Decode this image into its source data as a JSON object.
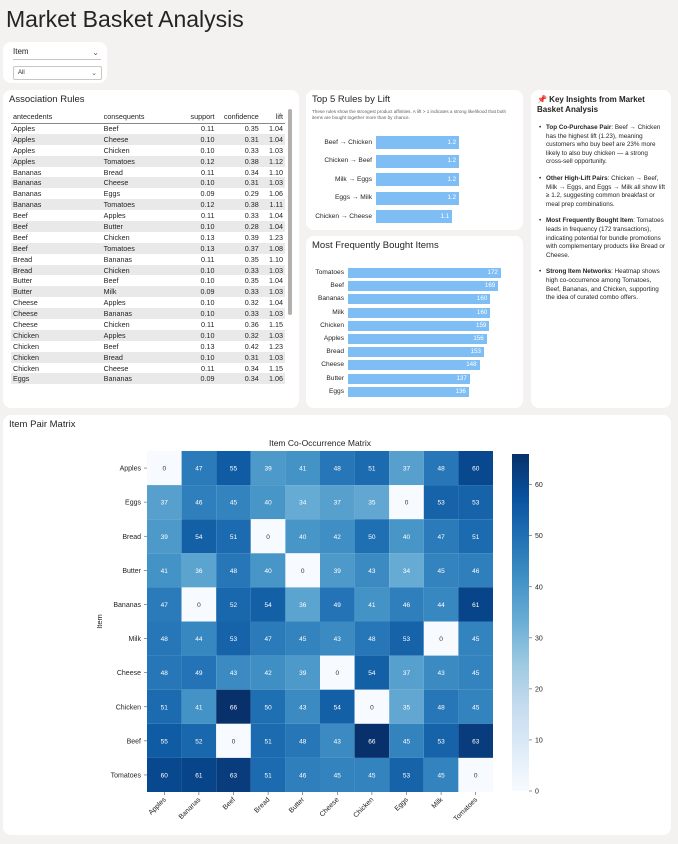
{
  "page": {
    "title": "Market Basket Analysis"
  },
  "slicer": {
    "label": "Item",
    "value": "All"
  },
  "rules_table": {
    "title": "Association Rules",
    "columns": [
      "antecedents",
      "consequents",
      "support",
      "confidence",
      "lift"
    ],
    "rows": [
      [
        "Apples",
        "Beef",
        "0.11",
        "0.35",
        "1.04"
      ],
      [
        "Apples",
        "Cheese",
        "0.10",
        "0.31",
        "1.04"
      ],
      [
        "Apples",
        "Chicken",
        "0.10",
        "0.33",
        "1.03"
      ],
      [
        "Apples",
        "Tomatoes",
        "0.12",
        "0.38",
        "1.12"
      ],
      [
        "Bananas",
        "Bread",
        "0.11",
        "0.34",
        "1.10"
      ],
      [
        "Bananas",
        "Cheese",
        "0.10",
        "0.31",
        "1.03"
      ],
      [
        "Bananas",
        "Eggs",
        "0.09",
        "0.29",
        "1.06"
      ],
      [
        "Bananas",
        "Tomatoes",
        "0.12",
        "0.38",
        "1.11"
      ],
      [
        "Beef",
        "Apples",
        "0.11",
        "0.33",
        "1.04"
      ],
      [
        "Beef",
        "Butter",
        "0.10",
        "0.28",
        "1.04"
      ],
      [
        "Beef",
        "Chicken",
        "0.13",
        "0.39",
        "1.23"
      ],
      [
        "Beef",
        "Tomatoes",
        "0.13",
        "0.37",
        "1.08"
      ],
      [
        "Bread",
        "Bananas",
        "0.11",
        "0.35",
        "1.10"
      ],
      [
        "Bread",
        "Chicken",
        "0.10",
        "0.33",
        "1.03"
      ],
      [
        "Butter",
        "Beef",
        "0.10",
        "0.35",
        "1.04"
      ],
      [
        "Butter",
        "Milk",
        "0.09",
        "0.33",
        "1.03"
      ],
      [
        "Cheese",
        "Apples",
        "0.10",
        "0.32",
        "1.04"
      ],
      [
        "Cheese",
        "Bananas",
        "0.10",
        "0.33",
        "1.03"
      ],
      [
        "Cheese",
        "Chicken",
        "0.11",
        "0.36",
        "1.15"
      ],
      [
        "Chicken",
        "Apples",
        "0.10",
        "0.32",
        "1.03"
      ],
      [
        "Chicken",
        "Beef",
        "0.13",
        "0.42",
        "1.23"
      ],
      [
        "Chicken",
        "Bread",
        "0.10",
        "0.31",
        "1.03"
      ],
      [
        "Chicken",
        "Cheese",
        "0.11",
        "0.34",
        "1.15"
      ],
      [
        "Eggs",
        "Bananas",
        "0.09",
        "0.34",
        "1.06"
      ]
    ]
  },
  "top5": {
    "title": "Top 5 Rules by Lift",
    "subtitle": "These rules show the strongest product affinities. A lift > 1 indicates a strong likelihood that both items are bought together more than by chance."
  },
  "freq": {
    "title": "Most Frequently Bought Items"
  },
  "insights": {
    "icon": "pushpin-icon",
    "title": "📌 Key Insights from Market Basket Analysis",
    "items": [
      {
        "heading": "Top Co-Purchase Pair",
        "text": ": Beef → Chicken has the highest lift (1.23), meaning customers who buy beef are 23% more likely to also buy chicken — a strong cross-sell opportunity."
      },
      {
        "heading": "Other High-Lift Pairs",
        "text": ": Chicken → Beef, Milk → Eggs, and Eggs → Milk all show lift ≥ 1.2, suggesting common breakfast or meal prep combinations."
      },
      {
        "heading": "Most Frequently Bought Item",
        "text": ": Tomatoes leads in frequency (172 transactions), indicating potential for bundle promotions with complementary products like Bread or Cheese."
      },
      {
        "heading": "Strong Item Networks",
        "text": ": Heatmap shows high co-occurrence among Tomatoes, Beef, Bananas, and Chicken, supporting the idea of curated combo offers."
      }
    ]
  },
  "matrix": {
    "card_title": "Item Pair Matrix"
  },
  "chart_data": [
    {
      "type": "bar",
      "orientation": "horizontal",
      "title": "Top 5 Rules by Lift",
      "categories": [
        "Beef → Chicken",
        "Chicken → Beef",
        "Milk → Eggs",
        "Eggs → Milk",
        "Chicken → Cheese"
      ],
      "values": [
        1.2,
        1.2,
        1.2,
        1.2,
        1.1
      ],
      "xlim": [
        0,
        1.3
      ],
      "color": "#7fbef5"
    },
    {
      "type": "bar",
      "orientation": "horizontal",
      "title": "Most Frequently Bought Items",
      "categories": [
        "Tomatoes",
        "Beef",
        "Bananas",
        "Milk",
        "Chicken",
        "Apples",
        "Bread",
        "Cheese",
        "Butter",
        "Eggs"
      ],
      "values": [
        172,
        169,
        160,
        160,
        159,
        156,
        153,
        148,
        137,
        136
      ],
      "xlim": [
        0,
        180
      ],
      "color": "#7fbef5"
    },
    {
      "type": "heatmap",
      "title": "Item Co-Occurrence Matrix",
      "ylabel": "Item",
      "rows": [
        "Apples",
        "Eggs",
        "Bread",
        "Butter",
        "Bananas",
        "Milk",
        "Cheese",
        "Chicken",
        "Beef",
        "Tomatoes"
      ],
      "columns": [
        "Apples",
        "Bananas",
        "Beef",
        "Bread",
        "Butter",
        "Cheese",
        "Chicken",
        "Eggs",
        "Milk",
        "Tomatoes"
      ],
      "values": [
        [
          0,
          47,
          55,
          39,
          41,
          48,
          51,
          37,
          48,
          60
        ],
        [
          37,
          46,
          45,
          40,
          34,
          37,
          35,
          0,
          53,
          53
        ],
        [
          39,
          54,
          51,
          0,
          40,
          42,
          50,
          40,
          47,
          51
        ],
        [
          41,
          36,
          48,
          40,
          0,
          39,
          43,
          34,
          45,
          46
        ],
        [
          47,
          0,
          52,
          54,
          36,
          49,
          41,
          46,
          44,
          61
        ],
        [
          48,
          44,
          53,
          47,
          45,
          43,
          48,
          53,
          0,
          45
        ],
        [
          48,
          49,
          43,
          42,
          39,
          0,
          54,
          37,
          43,
          45
        ],
        [
          51,
          41,
          66,
          50,
          43,
          54,
          0,
          35,
          48,
          45
        ],
        [
          55,
          52,
          0,
          51,
          48,
          43,
          66,
          45,
          53,
          63
        ],
        [
          60,
          61,
          63,
          51,
          46,
          45,
          45,
          53,
          45,
          0
        ]
      ],
      "colorbar": {
        "min": 0,
        "max": 66,
        "ticks": [
          0,
          10,
          20,
          30,
          40,
          50,
          60
        ]
      },
      "colormap": "Blues"
    }
  ]
}
